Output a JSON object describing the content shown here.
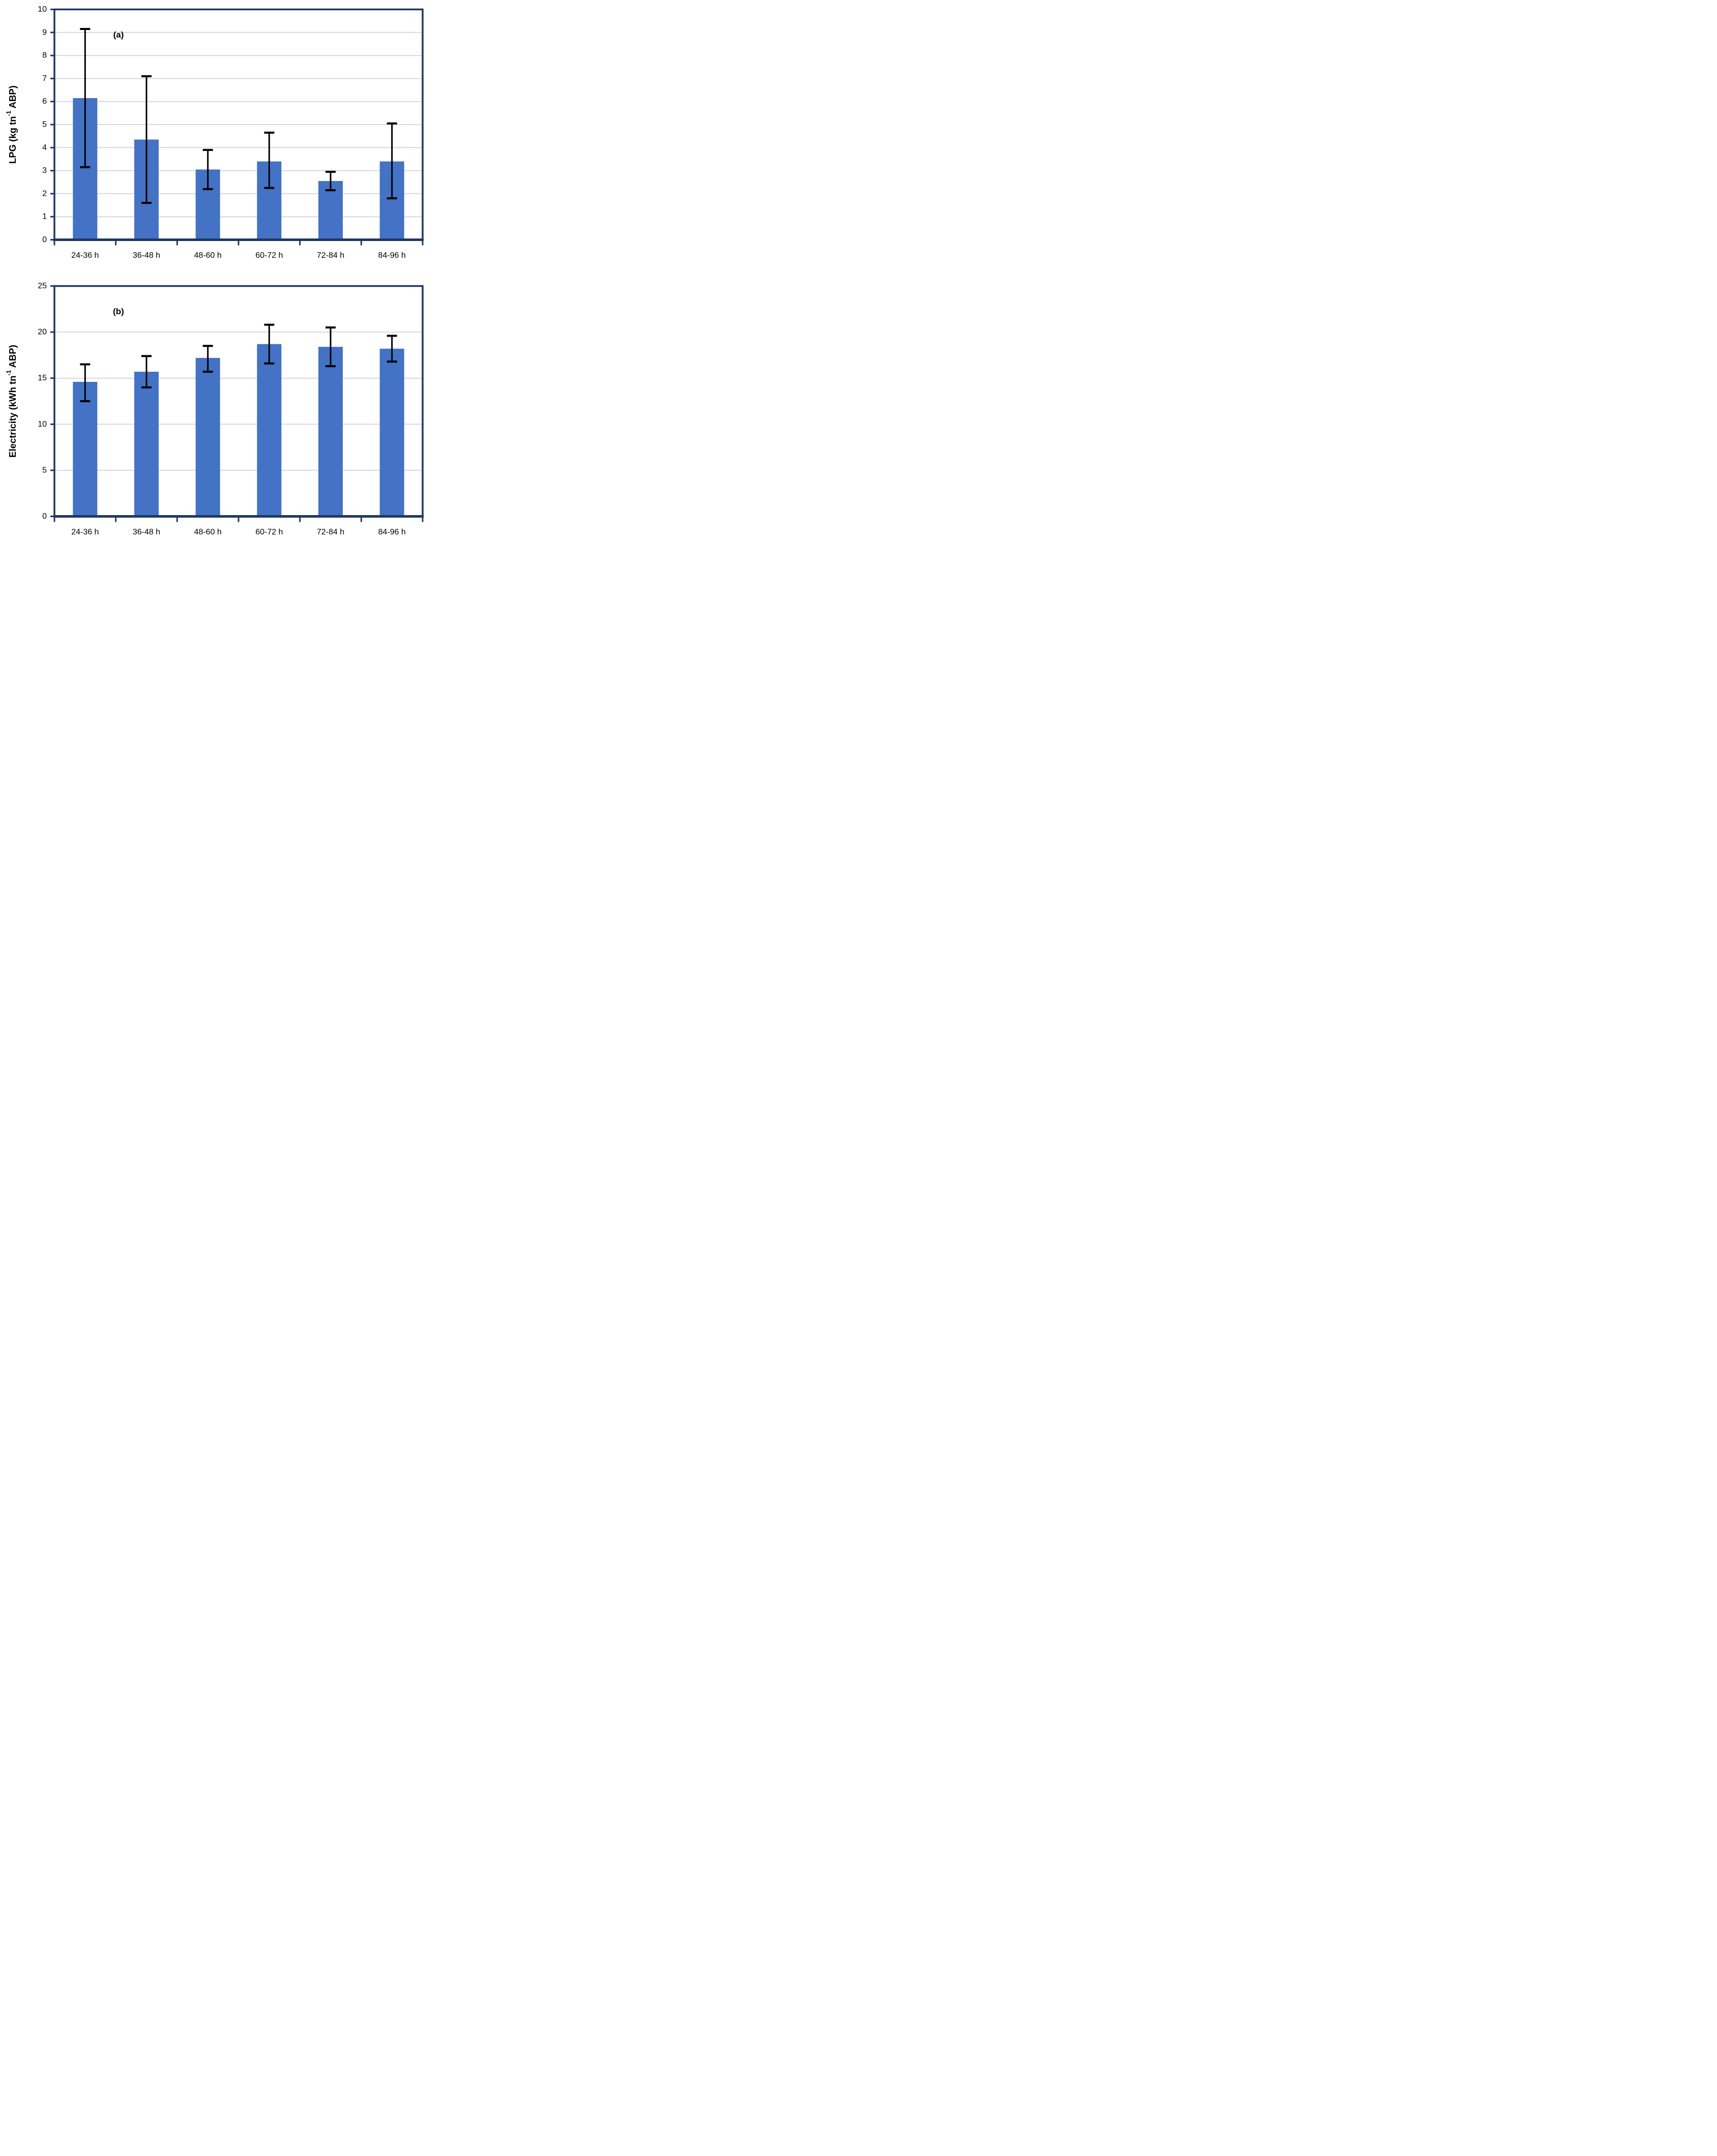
{
  "figure": {
    "background": "#FFFFFF",
    "description": "Two stacked vertical bar charts with error bars"
  },
  "colors": {
    "bar": "#4472C4",
    "axis": "#1F3864",
    "gridline": "#D9D9D9",
    "error_bar": "#000000",
    "text": "#000000"
  },
  "chart_data": [
    {
      "panel_label": "(a)",
      "type": "bar",
      "title": "",
      "xlabel": "",
      "ylabel": {
        "pre": "LPG (kg tn",
        "sup": "-1",
        "post": " ABP)"
      },
      "categories": [
        "24-36 h",
        "36-48 h",
        "48-60 h",
        "60-72 h",
        "72-84 h",
        "84-96 h"
      ],
      "values": [
        6.15,
        4.35,
        3.05,
        3.4,
        2.55,
        3.4
      ],
      "error_low": [
        3.15,
        1.6,
        2.2,
        2.25,
        2.15,
        1.8
      ],
      "error_high": [
        9.15,
        7.1,
        3.9,
        4.65,
        2.95,
        5.05
      ],
      "ylim": [
        0,
        10
      ],
      "ytick_step": 1,
      "ytick_labels": [
        "0",
        "1",
        "2",
        "3",
        "4",
        "5",
        "6",
        "7",
        "8",
        "9",
        "10"
      ],
      "grid": "horizontal",
      "legend": "none"
    },
    {
      "panel_label": "(b)",
      "type": "bar",
      "title": "",
      "xlabel": "",
      "ylabel": {
        "pre": "Electricity (kWh tn",
        "sup": "-1",
        "post": " ABP)"
      },
      "categories": [
        "24-36 h",
        "36-48 h",
        "48-60 h",
        "60-72 h",
        "72-84 h",
        "84-96 h"
      ],
      "values": [
        14.6,
        15.7,
        17.2,
        18.7,
        18.4,
        18.2
      ],
      "error_low": [
        12.5,
        14.0,
        15.7,
        16.6,
        16.3,
        16.8
      ],
      "error_high": [
        16.5,
        17.4,
        18.5,
        20.8,
        20.5,
        19.6
      ],
      "ylim": [
        0,
        25
      ],
      "ytick_step": 5,
      "ytick_labels": [
        "0",
        "5",
        "10",
        "15",
        "20",
        "25"
      ],
      "grid": "horizontal",
      "legend": "none"
    }
  ]
}
